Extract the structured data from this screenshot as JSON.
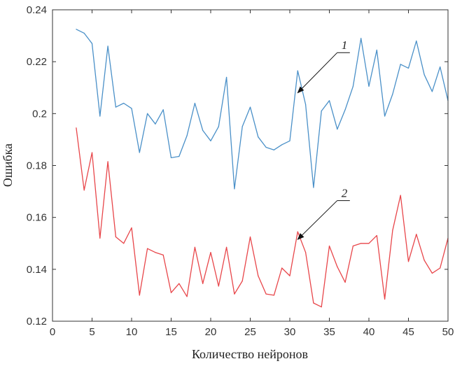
{
  "chart_data": {
    "type": "line",
    "xlabel": "Количество нейронов",
    "ylabel": "Ошибка",
    "xlim": [
      0,
      50
    ],
    "ylim": [
      0.12,
      0.24
    ],
    "xticks": [
      0,
      5,
      10,
      15,
      20,
      25,
      30,
      35,
      40,
      45,
      50
    ],
    "yticks": [
      0.12,
      0.14,
      0.16,
      0.18,
      0.2,
      0.22,
      0.24
    ],
    "xtick_labels": [
      "0",
      "5",
      "10",
      "15",
      "20",
      "25",
      "30",
      "35",
      "40",
      "45",
      "50"
    ],
    "ytick_labels": [
      "0.12",
      "0.14",
      "0.16",
      "0.18",
      "0.2",
      "0.22",
      "0.24"
    ],
    "grid": false,
    "x": [
      3,
      4,
      5,
      6,
      7,
      8,
      9,
      10,
      11,
      12,
      13,
      14,
      15,
      16,
      17,
      18,
      19,
      20,
      21,
      22,
      23,
      24,
      25,
      26,
      27,
      28,
      29,
      30,
      31,
      32,
      33,
      34,
      35,
      36,
      37,
      38,
      39,
      40,
      41,
      42,
      43,
      44,
      45,
      46,
      47,
      48,
      49,
      50
    ],
    "series": [
      {
        "color": "#4a90c8",
        "values": [
          0.2325,
          0.231,
          0.227,
          0.199,
          0.226,
          0.2025,
          0.204,
          0.202,
          0.185,
          0.2,
          0.196,
          0.2015,
          0.183,
          0.1835,
          0.1915,
          0.204,
          0.1935,
          0.1895,
          0.195,
          0.214,
          0.171,
          0.195,
          0.2025,
          0.191,
          0.187,
          0.186,
          0.188,
          0.1895,
          0.2165,
          0.2035,
          0.1715,
          0.201,
          0.205,
          0.194,
          0.2015,
          0.2105,
          0.229,
          0.2105,
          0.2245,
          0.199,
          0.2075,
          0.219,
          0.2175,
          0.228,
          0.215,
          0.2085,
          0.218,
          0.205
        ]
      },
      {
        "color": "#e8464a",
        "values": [
          0.1945,
          0.1705,
          0.185,
          0.152,
          0.1815,
          0.1525,
          0.15,
          0.156,
          0.13,
          0.148,
          0.1465,
          0.1455,
          0.131,
          0.1345,
          0.1295,
          0.1485,
          0.1345,
          0.1465,
          0.1335,
          0.1485,
          0.1305,
          0.1355,
          0.1525,
          0.1375,
          0.1305,
          0.13,
          0.1405,
          0.1375,
          0.1545,
          0.1465,
          0.127,
          0.1255,
          0.149,
          0.141,
          0.135,
          0.149,
          0.15,
          0.15,
          0.153,
          0.1285,
          0.155,
          0.1685,
          0.143,
          0.1535,
          0.1435,
          0.1385,
          0.1405,
          0.152
        ]
      }
    ],
    "annotations": [
      {
        "label": "1",
        "x": 36.0,
        "y": 0.2235,
        "tip_x": 31.0,
        "tip_y": 0.208
      },
      {
        "label": "2",
        "x": 36.0,
        "y": 0.1665,
        "tip_x": 31.0,
        "tip_y": 0.1515
      }
    ]
  }
}
